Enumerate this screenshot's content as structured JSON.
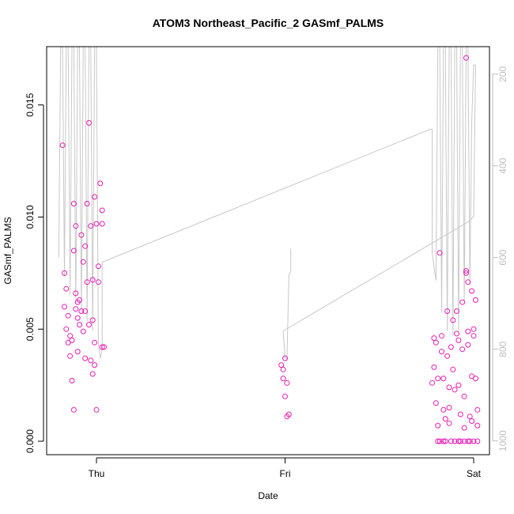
{
  "chart_data": {
    "type": "scatter",
    "title": "ATOM3 Northeast_Pacific_2 GASmf_PALMS",
    "xlabel": "Date",
    "ylabel": "GASmf_PALMS",
    "x_ticks": [
      "Thu",
      "Fri",
      "Sat"
    ],
    "y_ticks": [
      "0.000",
      "0.005",
      "0.010",
      "0.015"
    ],
    "y_tick_values": [
      0.0,
      0.005,
      0.01,
      0.015
    ],
    "ylim": [
      -0.0006,
      0.0176
    ],
    "y2_ticks": [
      "200",
      "400",
      "600",
      "800",
      "1000"
    ],
    "y2_tick_values": [
      200,
      400,
      600,
      800,
      1000
    ],
    "y2lim": [
      1030,
      140
    ],
    "y2_reversed": true,
    "point_color": "#e61eb4",
    "line_color": "#c8c8c8",
    "series": [
      {
        "values": [
          [
            -0.18,
            0.0132
          ],
          [
            -0.17,
            0.0075
          ],
          [
            -0.16,
            0.0068
          ],
          [
            -0.17,
            0.006
          ],
          [
            -0.15,
            0.0056
          ],
          [
            -0.16,
            0.005
          ],
          [
            -0.14,
            0.0047
          ],
          [
            -0.15,
            0.0044
          ],
          [
            -0.13,
            0.0045
          ],
          [
            -0.14,
            0.0038
          ],
          [
            -0.12,
            0.0106
          ],
          [
            -0.11,
            0.0096
          ],
          [
            -0.12,
            0.0085
          ],
          [
            -0.11,
            0.0066
          ],
          [
            -0.1,
            0.0062
          ],
          [
            -0.11,
            0.0059
          ],
          [
            -0.1,
            0.0055
          ],
          [
            -0.09,
            0.0052
          ],
          [
            -0.1,
            0.004
          ],
          [
            -0.13,
            0.0027
          ],
          [
            -0.12,
            0.0014
          ],
          [
            -0.08,
            0.0092
          ],
          [
            -0.07,
            0.008
          ],
          [
            -0.06,
            0.0087
          ],
          [
            -0.05,
            0.0106
          ],
          [
            -0.05,
            0.0071
          ],
          [
            -0.06,
            0.0058
          ],
          [
            -0.04,
            0.0052
          ],
          [
            -0.03,
            0.0036
          ],
          [
            -0.02,
            0.003
          ],
          [
            -0.04,
            0.0142
          ],
          [
            -0.03,
            0.0096
          ],
          [
            -0.01,
            0.0109
          ],
          [
            0.0,
            0.0097
          ],
          [
            -0.02,
            0.0072
          ],
          [
            -0.02,
            0.0054
          ],
          [
            -0.01,
            0.0044
          ],
          [
            0.01,
            0.0078
          ],
          [
            0.01,
            0.0071
          ],
          [
            0.02,
            0.0115
          ],
          [
            0.03,
            0.0103
          ],
          [
            0.03,
            0.0097
          ],
          [
            0.03,
            0.0042
          ],
          [
            0.04,
            0.0042
          ],
          [
            -0.01,
            0.0034
          ],
          [
            0.0,
            0.0014
          ],
          [
            -0.09,
            0.0063
          ],
          [
            -0.08,
            0.0058
          ],
          [
            -0.07,
            0.0049
          ],
          [
            -0.06,
            0.0037
          ],
          [
            0.98,
            0.0034
          ],
          [
            0.99,
            0.0032
          ],
          [
            0.99,
            0.0028
          ],
          [
            1.0,
            0.0037
          ],
          [
            1.01,
            0.0026
          ],
          [
            1.0,
            0.002
          ],
          [
            1.01,
            0.0011
          ],
          [
            1.02,
            0.0012
          ],
          [
            1.78,
            0.0026
          ],
          [
            1.79,
            0.0046
          ],
          [
            1.79,
            0.0033
          ],
          [
            1.8,
            0.0044
          ],
          [
            1.8,
            0.0017
          ],
          [
            1.81,
            0.0007
          ],
          [
            1.81,
            0.0
          ],
          [
            1.82,
            0.0
          ],
          [
            1.82,
            0.0084
          ],
          [
            1.83,
            0.0047
          ],
          [
            1.83,
            0.004
          ],
          [
            1.84,
            0.0028
          ],
          [
            1.84,
            0.0014
          ],
          [
            1.85,
            0.001
          ],
          [
            1.85,
            0.0
          ],
          [
            1.86,
            0.0058
          ],
          [
            1.86,
            0.0038
          ],
          [
            1.87,
            0.0015
          ],
          [
            1.87,
            0.0024
          ],
          [
            1.88,
            0.0
          ],
          [
            1.88,
            0.0042
          ],
          [
            1.89,
            0.0054
          ],
          [
            1.89,
            0.0032
          ],
          [
            1.9,
            0.0023
          ],
          [
            1.9,
            0.0
          ],
          [
            1.91,
            0.0058
          ],
          [
            1.91,
            0.0048
          ],
          [
            1.92,
            0.0045
          ],
          [
            1.92,
            0.0025
          ],
          [
            1.93,
            0.0012
          ],
          [
            1.93,
            0.0
          ],
          [
            1.94,
            0.0062
          ],
          [
            1.94,
            0.0041
          ],
          [
            1.95,
            0.002
          ],
          [
            1.95,
            0.0006
          ],
          [
            1.96,
            0.0076
          ],
          [
            1.96,
            0.0075
          ],
          [
            1.97,
            0.0071
          ],
          [
            1.97,
            0.0049
          ],
          [
            1.97,
            0.0043
          ],
          [
            1.98,
            0.0011
          ],
          [
            1.98,
            0.0
          ],
          [
            1.96,
            0.0171
          ],
          [
            1.99,
            0.0067
          ],
          [
            1.99,
            0.0029
          ],
          [
            2.0,
            0.005
          ],
          [
            2.0,
            0.0047
          ],
          [
            2.01,
            0.0063
          ],
          [
            2.01,
            0.0028
          ],
          [
            2.02,
            0.0014
          ],
          [
            2.02,
            0.0007
          ],
          [
            2.02,
            0.0
          ],
          [
            1.97,
            0.0
          ],
          [
            1.99,
            0.0009
          ],
          [
            2.0,
            0.0
          ],
          [
            1.95,
            0.0
          ],
          [
            1.92,
            0.0
          ],
          [
            1.87,
            0.0008
          ],
          [
            1.84,
            0.0
          ],
          [
            1.81,
            0.0028
          ]
        ]
      }
    ],
    "altitude_line": [
      [
        -0.2,
        600
      ],
      [
        -0.19,
        140
      ],
      [
        -0.18,
        140
      ],
      [
        -0.17,
        640
      ],
      [
        -0.16,
        140
      ],
      [
        -0.15,
        140
      ],
      [
        -0.14,
        680
      ],
      [
        -0.13,
        140
      ],
      [
        -0.12,
        140
      ],
      [
        -0.11,
        700
      ],
      [
        -0.1,
        140
      ],
      [
        -0.09,
        140
      ],
      [
        -0.08,
        720
      ],
      [
        -0.07,
        140
      ],
      [
        -0.06,
        140
      ],
      [
        -0.05,
        740
      ],
      [
        -0.04,
        140
      ],
      [
        -0.03,
        140
      ],
      [
        -0.02,
        760
      ],
      [
        -0.01,
        140
      ],
      [
        0.0,
        140
      ],
      [
        0.01,
        790
      ],
      [
        0.02,
        820
      ],
      [
        0.03,
        800
      ],
      [
        0.03,
        610
      ],
      [
        1.77,
        320
      ],
      [
        1.78,
        320
      ],
      [
        1.78,
        590
      ],
      [
        1.8,
        650
      ],
      [
        1.81,
        140
      ],
      [
        1.82,
        140
      ],
      [
        1.83,
        720
      ],
      [
        1.84,
        140
      ],
      [
        1.85,
        140
      ],
      [
        1.86,
        760
      ],
      [
        1.87,
        140
      ],
      [
        1.88,
        140
      ],
      [
        1.89,
        770
      ],
      [
        1.9,
        140
      ],
      [
        1.91,
        140
      ],
      [
        1.92,
        760
      ],
      [
        1.93,
        140
      ],
      [
        1.94,
        140
      ],
      [
        1.95,
        700
      ],
      [
        1.96,
        140
      ],
      [
        1.97,
        140
      ],
      [
        1.98,
        660
      ],
      [
        1.99,
        300
      ],
      [
        2.0,
        180
      ],
      [
        2.01,
        180
      ],
      [
        2.0,
        510
      ],
      [
        1.98,
        520
      ],
      [
        0.99,
        760
      ],
      [
        1.0,
        820
      ],
      [
        1.01,
        820
      ],
      [
        1.02,
        640
      ],
      [
        1.03,
        630
      ],
      [
        1.03,
        580
      ]
    ]
  }
}
